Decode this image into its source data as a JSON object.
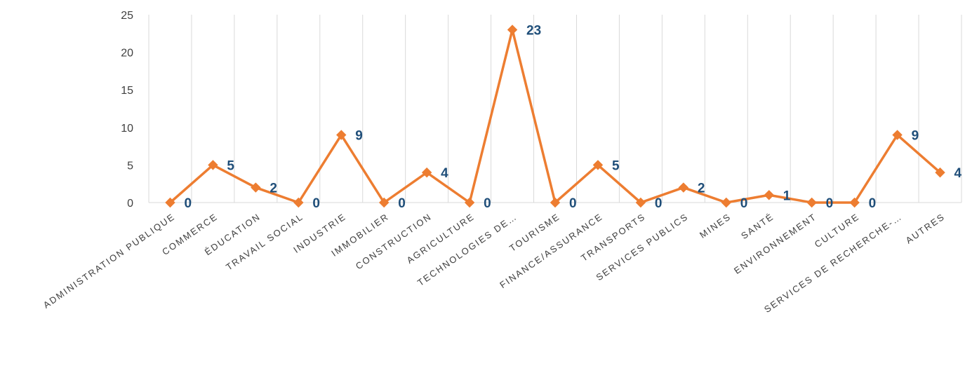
{
  "chart_data": {
    "type": "line",
    "title": "",
    "xlabel": "",
    "ylabel": "",
    "categories": [
      "ADMINISTRATION PUBLIQUE",
      "COMMERCE",
      "ÉDUCATION",
      "TRAVAIL SOCIAL",
      "INDUSTRIE",
      "IMMOBILIER",
      "CONSTRUCTION",
      "AGRICULTURE",
      "TECHNOLOGIES DE…",
      "TOURISME",
      "FINANCE/ASSURANCE",
      "TRANSPORTS",
      "SERVICES PUBLICS",
      "MINES",
      "SANTÉ",
      "ENVIRONNEMENT",
      "CULTURE",
      "SERVICES DE RECHERCHE-…",
      "AUTRES"
    ],
    "series": [
      {
        "values": [
          0,
          5,
          2,
          0,
          9,
          0,
          4,
          0,
          23,
          0,
          5,
          0,
          2,
          0,
          1,
          0,
          0,
          9,
          4
        ]
      }
    ],
    "ylim": [
      0,
      25
    ],
    "yticks": [
      0,
      5,
      10,
      15,
      20,
      25
    ],
    "grid": "vertical",
    "legend": "none",
    "colors": {
      "line": "#ED7D31",
      "label": "#1F4E79",
      "grid": "#D9D9D9",
      "tick": "#404040"
    }
  }
}
